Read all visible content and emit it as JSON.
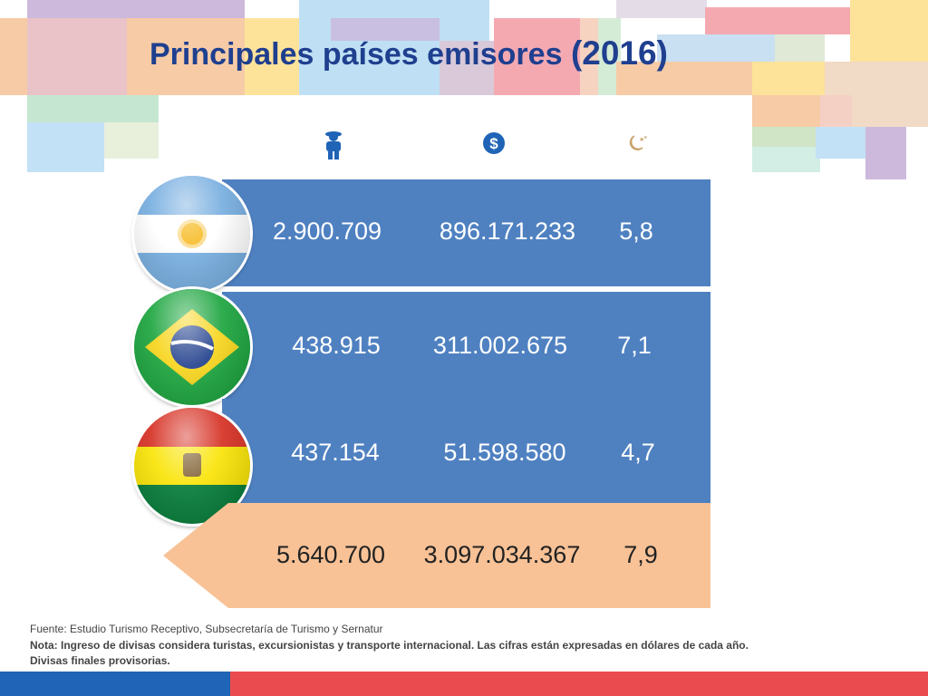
{
  "slide": {
    "title": "Principales países emisores",
    "year": "(2016)"
  },
  "header_icons": [
    "tourist-icon",
    "dollar-icon",
    "night-moon-icon"
  ],
  "colors": {
    "title": "#1f3f8f",
    "row_blue": "#4f81c1",
    "row_total": "#f8c296",
    "footer_blue": "#1f64b6",
    "footer_red": "#e94b4e"
  },
  "rows": [
    {
      "flag": "argentina-flag",
      "tourists": "2.900.709",
      "income": "896.171.233",
      "nights": "5,8"
    },
    {
      "flag": "brazil-flag",
      "tourists": "438.915",
      "income": "311.002.675",
      "nights": "7,1"
    },
    {
      "flag": "bolivia-flag",
      "tourists": "437.154",
      "income": "51.598.580",
      "nights": "4,7"
    }
  ],
  "total": {
    "tourists": "5.640.700",
    "income": "3.097.034.367",
    "nights": "7,9"
  },
  "notes": {
    "source": "Fuente: Estudio Turismo Receptivo, Subsecretaría de Turismo y Sernatur",
    "note": "Nota: Ingreso de divisas considera turistas, excursionistas y transporte internacional. Las cifras están expresadas en dólares de cada año.",
    "provisional": "Divisas finales provisorias."
  }
}
